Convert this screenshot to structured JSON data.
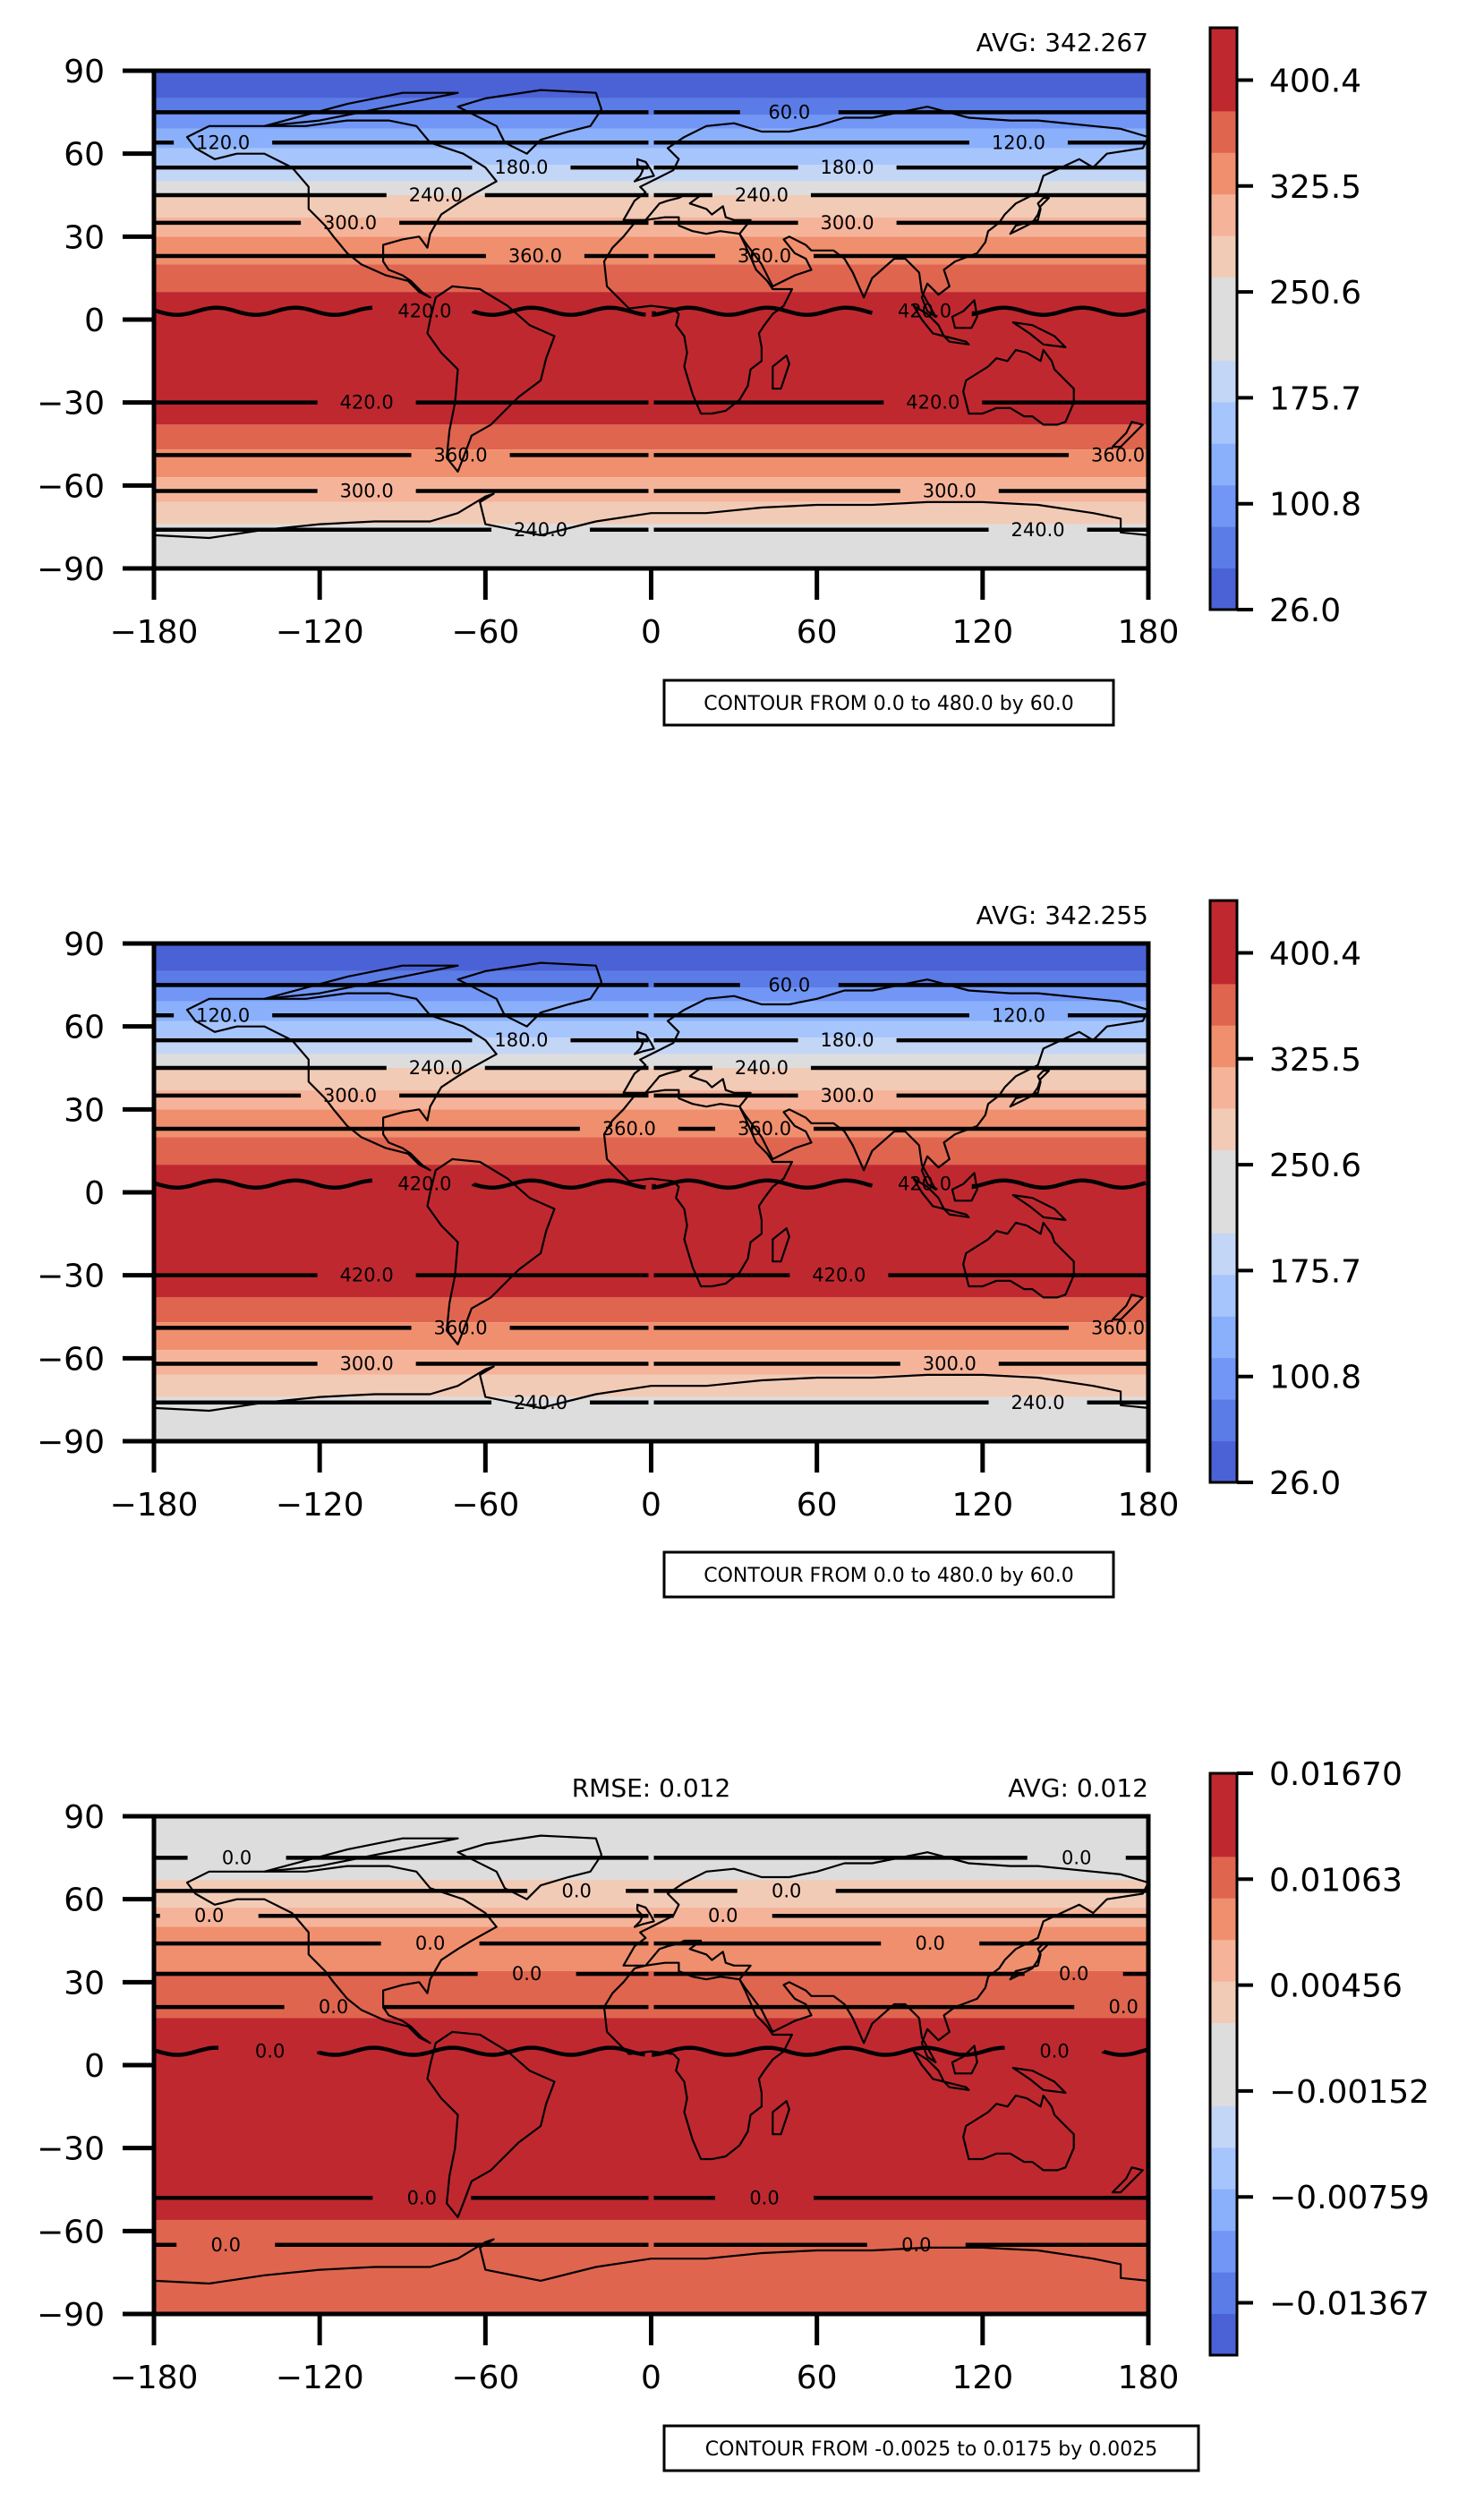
{
  "chart_data": [
    {
      "type": "contour_map",
      "avg_label": "AVG: 342.267",
      "rmse_label": "",
      "note": "CONTOUR FROM 0.0 to 480.0 by 60.0",
      "xlim": [
        -180,
        180
      ],
      "ylim": [
        -90,
        90
      ],
      "xticks": [
        "−180",
        "−120",
        "−60",
        "0",
        "60",
        "120",
        "180"
      ],
      "xtick_values": [
        -180,
        -120,
        -60,
        0,
        60,
        120,
        180
      ],
      "yticks": [
        "90",
        "60",
        "30",
        "0",
        "−30",
        "−60",
        "−90"
      ],
      "ytick_values": [
        90,
        60,
        30,
        0,
        -30,
        -60,
        -90
      ],
      "bands": [
        {
          "lat_top": 90,
          "lat_bottom": 80,
          "color": "#4a62d6"
        },
        {
          "lat_top": 80,
          "lat_bottom": 74,
          "color": "#5b7ce6"
        },
        {
          "lat_top": 74,
          "lat_bottom": 69,
          "color": "#7196f5"
        },
        {
          "lat_top": 69,
          "lat_bottom": 62,
          "color": "#8ab0fb"
        },
        {
          "lat_top": 62,
          "lat_bottom": 56,
          "color": "#a7c5fd"
        },
        {
          "lat_top": 56,
          "lat_bottom": 50,
          "color": "#c4d6f5"
        },
        {
          "lat_top": 50,
          "lat_bottom": 45,
          "color": "#dddddd"
        },
        {
          "lat_top": 45,
          "lat_bottom": 37,
          "color": "#f2cbb7"
        },
        {
          "lat_top": 37,
          "lat_bottom": 30,
          "color": "#f5b49a"
        },
        {
          "lat_top": 30,
          "lat_bottom": 20,
          "color": "#f08f6e"
        },
        {
          "lat_top": 20,
          "lat_bottom": 10,
          "color": "#e0654f"
        },
        {
          "lat_top": 10,
          "lat_bottom": -38,
          "color": "#c0282f"
        },
        {
          "lat_top": -38,
          "lat_bottom": -47,
          "color": "#e0654f"
        },
        {
          "lat_top": -47,
          "lat_bottom": -57,
          "color": "#f08f6e"
        },
        {
          "lat_top": -57,
          "lat_bottom": -66,
          "color": "#f5b49a"
        },
        {
          "lat_top": -66,
          "lat_bottom": -74,
          "color": "#f2cbb7"
        },
        {
          "lat_top": -74,
          "lat_bottom": -90,
          "color": "#dddddd"
        }
      ],
      "contours": [
        {
          "lat": 75,
          "labels": [
            {
              "lon": 50,
              "text": "60.0"
            }
          ]
        },
        {
          "lat": 64,
          "labels": [
            {
              "lon": -155,
              "text": "120.0"
            },
            {
              "lon": 133,
              "text": "120.0"
            }
          ]
        },
        {
          "lat": 55,
          "labels": [
            {
              "lon": -47,
              "text": "180.0"
            },
            {
              "lon": 71,
              "text": "180.0"
            }
          ]
        },
        {
          "lat": 45,
          "labels": [
            {
              "lon": -78,
              "text": "240.0"
            },
            {
              "lon": 40,
              "text": "240.0"
            }
          ]
        },
        {
          "lat": 35,
          "labels": [
            {
              "lon": -109,
              "text": "300.0"
            },
            {
              "lon": 71,
              "text": "300.0"
            }
          ]
        },
        {
          "lat": 23,
          "labels": [
            {
              "lon": -42,
              "text": "360.0"
            },
            {
              "lon": 41,
              "text": "360.0"
            }
          ]
        },
        {
          "lat": 3,
          "wavy": true,
          "labels": [
            {
              "lon": -82,
              "text": "420.0"
            },
            {
              "lon": 99,
              "text": "420.0"
            }
          ]
        },
        {
          "lat": -30,
          "labels": [
            {
              "lon": -103,
              "text": "420.0"
            },
            {
              "lon": 102,
              "text": "420.0"
            }
          ]
        },
        {
          "lat": -49,
          "labels": [
            {
              "lon": -69,
              "text": "360.0"
            },
            {
              "lon": 169,
              "text": "360.0"
            }
          ]
        },
        {
          "lat": -62,
          "labels": [
            {
              "lon": -103,
              "text": "300.0"
            },
            {
              "lon": 108,
              "text": "300.0"
            }
          ]
        },
        {
          "lat": -76,
          "labels": [
            {
              "lon": -40,
              "text": "240.0"
            },
            {
              "lon": 140,
              "text": "240.0"
            }
          ]
        }
      ],
      "colorbar": {
        "colors": [
          "#4a62d6",
          "#5b7ce6",
          "#7196f5",
          "#8ab0fb",
          "#a7c5fd",
          "#c4d6f5",
          "#dddddd",
          "#dddddd",
          "#f2cbb7",
          "#f5b49a",
          "#f08f6e",
          "#e0654f",
          "#c0282f",
          "#c0282f"
        ],
        "tick_labels": [
          "26.0",
          "100.8",
          "175.7",
          "250.6",
          "325.5",
          "400.4"
        ],
        "tick_fractions": [
          0.0,
          0.182,
          0.364,
          0.546,
          0.728,
          0.91
        ]
      }
    },
    {
      "type": "contour_map",
      "avg_label": "AVG: 342.255",
      "rmse_label": "",
      "note": "CONTOUR FROM 0.0 to 480.0 by 60.0",
      "xlim": [
        -180,
        180
      ],
      "ylim": [
        -90,
        90
      ],
      "xticks": [
        "−180",
        "−120",
        "−60",
        "0",
        "60",
        "120",
        "180"
      ],
      "xtick_values": [
        -180,
        -120,
        -60,
        0,
        60,
        120,
        180
      ],
      "yticks": [
        "90",
        "60",
        "30",
        "0",
        "−30",
        "−60",
        "−90"
      ],
      "ytick_values": [
        90,
        60,
        30,
        0,
        -30,
        -60,
        -90
      ],
      "bands": [
        {
          "lat_top": 90,
          "lat_bottom": 80,
          "color": "#4a62d6"
        },
        {
          "lat_top": 80,
          "lat_bottom": 74,
          "color": "#5b7ce6"
        },
        {
          "lat_top": 74,
          "lat_bottom": 69,
          "color": "#7196f5"
        },
        {
          "lat_top": 69,
          "lat_bottom": 62,
          "color": "#8ab0fb"
        },
        {
          "lat_top": 62,
          "lat_bottom": 56,
          "color": "#a7c5fd"
        },
        {
          "lat_top": 56,
          "lat_bottom": 50,
          "color": "#c4d6f5"
        },
        {
          "lat_top": 50,
          "lat_bottom": 45,
          "color": "#dddddd"
        },
        {
          "lat_top": 45,
          "lat_bottom": 37,
          "color": "#f2cbb7"
        },
        {
          "lat_top": 37,
          "lat_bottom": 30,
          "color": "#f5b49a"
        },
        {
          "lat_top": 30,
          "lat_bottom": 20,
          "color": "#f08f6e"
        },
        {
          "lat_top": 20,
          "lat_bottom": 10,
          "color": "#e0654f"
        },
        {
          "lat_top": 10,
          "lat_bottom": -38,
          "color": "#c0282f"
        },
        {
          "lat_top": -38,
          "lat_bottom": -47,
          "color": "#e0654f"
        },
        {
          "lat_top": -47,
          "lat_bottom": -57,
          "color": "#f08f6e"
        },
        {
          "lat_top": -57,
          "lat_bottom": -66,
          "color": "#f5b49a"
        },
        {
          "lat_top": -66,
          "lat_bottom": -74,
          "color": "#f2cbb7"
        },
        {
          "lat_top": -74,
          "lat_bottom": -90,
          "color": "#dddddd"
        }
      ],
      "contours": [
        {
          "lat": 75,
          "labels": [
            {
              "lon": 50,
              "text": "60.0"
            }
          ]
        },
        {
          "lat": 64,
          "labels": [
            {
              "lon": -155,
              "text": "120.0"
            },
            {
              "lon": 133,
              "text": "120.0"
            }
          ]
        },
        {
          "lat": 55,
          "labels": [
            {
              "lon": -47,
              "text": "180.0"
            },
            {
              "lon": 71,
              "text": "180.0"
            }
          ]
        },
        {
          "lat": 45,
          "labels": [
            {
              "lon": -78,
              "text": "240.0"
            },
            {
              "lon": 40,
              "text": "240.0"
            }
          ]
        },
        {
          "lat": 35,
          "labels": [
            {
              "lon": -109,
              "text": "300.0"
            },
            {
              "lon": 71,
              "text": "300.0"
            }
          ]
        },
        {
          "lat": 23,
          "labels": [
            {
              "lon": -8,
              "text": "360.0"
            },
            {
              "lon": 41,
              "text": "360.0"
            }
          ]
        },
        {
          "lat": 3,
          "wavy": true,
          "labels": [
            {
              "lon": -82,
              "text": "420.0"
            },
            {
              "lon": 99,
              "text": "420.0"
            }
          ]
        },
        {
          "lat": -30,
          "labels": [
            {
              "lon": -103,
              "text": "420.0"
            },
            {
              "lon": 68,
              "text": "420.0"
            }
          ]
        },
        {
          "lat": -49,
          "labels": [
            {
              "lon": -69,
              "text": "360.0"
            },
            {
              "lon": 169,
              "text": "360.0"
            }
          ]
        },
        {
          "lat": -62,
          "labels": [
            {
              "lon": -103,
              "text": "300.0"
            },
            {
              "lon": 108,
              "text": "300.0"
            }
          ]
        },
        {
          "lat": -76,
          "labels": [
            {
              "lon": -40,
              "text": "240.0"
            },
            {
              "lon": 140,
              "text": "240.0"
            }
          ]
        }
      ],
      "colorbar": {
        "colors": [
          "#4a62d6",
          "#5b7ce6",
          "#7196f5",
          "#8ab0fb",
          "#a7c5fd",
          "#c4d6f5",
          "#dddddd",
          "#dddddd",
          "#f2cbb7",
          "#f5b49a",
          "#f08f6e",
          "#e0654f",
          "#c0282f",
          "#c0282f"
        ],
        "tick_labels": [
          "26.0",
          "100.8",
          "175.7",
          "250.6",
          "325.5",
          "400.4"
        ],
        "tick_fractions": [
          0.0,
          0.182,
          0.364,
          0.546,
          0.728,
          0.91
        ]
      }
    },
    {
      "type": "contour_map",
      "avg_label": "AVG: 0.012",
      "rmse_label": "RMSE: 0.012",
      "note": "CONTOUR FROM -0.0025 to 0.0175 by 0.0025",
      "xlim": [
        -180,
        180
      ],
      "ylim": [
        -90,
        90
      ],
      "xticks": [
        "−180",
        "−120",
        "−60",
        "0",
        "60",
        "120",
        "180"
      ],
      "xtick_values": [
        -180,
        -120,
        -60,
        0,
        60,
        120,
        180
      ],
      "yticks": [
        "90",
        "60",
        "30",
        "0",
        "−30",
        "−60",
        "−90"
      ],
      "ytick_values": [
        90,
        60,
        30,
        0,
        -30,
        -60,
        -90
      ],
      "bands": [
        {
          "lat_top": 90,
          "lat_bottom": 67,
          "color": "#dddddd"
        },
        {
          "lat_top": 67,
          "lat_bottom": 57,
          "color": "#f2cbb7"
        },
        {
          "lat_top": 57,
          "lat_bottom": 50,
          "color": "#f5b49a"
        },
        {
          "lat_top": 50,
          "lat_bottom": 34,
          "color": "#f08f6e"
        },
        {
          "lat_top": 34,
          "lat_bottom": 17,
          "color": "#e0654f"
        },
        {
          "lat_top": 17,
          "lat_bottom": -56,
          "color": "#c0282f"
        },
        {
          "lat_top": -56,
          "lat_bottom": -90,
          "color": "#e0654f"
        }
      ],
      "contours": [
        {
          "lat": 75,
          "labels": [
            {
              "lon": -150,
              "text": "0.0"
            },
            {
              "lon": 154,
              "text": "0.0"
            }
          ]
        },
        {
          "lat": 63,
          "labels": [
            {
              "lon": -27,
              "text": "0.0"
            },
            {
              "lon": 49,
              "text": "0.0"
            }
          ]
        },
        {
          "lat": 54,
          "labels": [
            {
              "lon": -160,
              "text": "0.0"
            },
            {
              "lon": 26,
              "text": "0.0"
            }
          ]
        },
        {
          "lat": 44,
          "labels": [
            {
              "lon": -80,
              "text": "0.0"
            },
            {
              "lon": 101,
              "text": "0.0"
            }
          ]
        },
        {
          "lat": 33,
          "labels": [
            {
              "lon": -45,
              "text": "0.0"
            },
            {
              "lon": 153,
              "text": "0.0"
            }
          ]
        },
        {
          "lat": 21,
          "labels": [
            {
              "lon": -115,
              "text": "0.0"
            },
            {
              "lon": 171,
              "text": "0.0"
            }
          ]
        },
        {
          "lat": 5,
          "wavy": true,
          "labels": [
            {
              "lon": -138,
              "text": "0.0"
            },
            {
              "lon": 146,
              "text": "0.0"
            }
          ]
        },
        {
          "lat": -48,
          "labels": [
            {
              "lon": -83,
              "text": "0.0"
            },
            {
              "lon": 41,
              "text": "0.0"
            }
          ]
        },
        {
          "lat": -65,
          "labels": [
            {
              "lon": -154,
              "text": "0.0"
            },
            {
              "lon": 96,
              "text": "0.0"
            }
          ]
        }
      ],
      "colorbar": {
        "colors": [
          "#4a62d6",
          "#5b7ce6",
          "#7196f5",
          "#8ab0fb",
          "#a7c5fd",
          "#c4d6f5",
          "#dddddd",
          "#dddddd",
          "#f2cbb7",
          "#f5b49a",
          "#f08f6e",
          "#e0654f",
          "#c0282f",
          "#c0282f"
        ],
        "tick_labels": [
          "−0.01367",
          "−0.00759",
          "−0.00152",
          "0.00456",
          "0.01063",
          "0.01670"
        ],
        "tick_fractions": [
          0.09,
          0.272,
          0.454,
          0.636,
          0.818,
          1.0
        ]
      }
    }
  ]
}
